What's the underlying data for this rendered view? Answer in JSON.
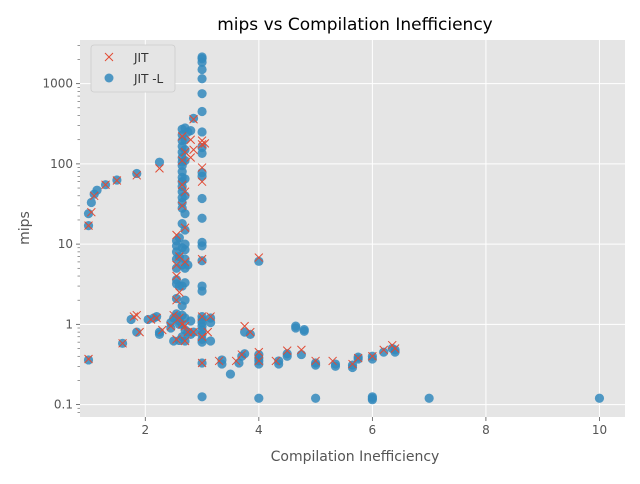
{
  "chart_data": {
    "type": "scatter",
    "title": "mips vs Compilation Inefficiency",
    "xlabel": "Compilation Inefficiency",
    "ylabel": "mips",
    "xlim": [
      0.85,
      10.45
    ],
    "ylim": [
      0.07,
      3500
    ],
    "yscale": "log",
    "xticks": [
      2,
      4,
      6,
      8,
      10
    ],
    "yticks": [
      0.1,
      1,
      10,
      100,
      1000
    ],
    "ytick_labels": [
      "0.1",
      "1",
      "10",
      "100",
      "1000"
    ],
    "grid": true,
    "legend_position": "top-left",
    "series": [
      {
        "name": "JIT",
        "marker": "x",
        "color": "#E24A33",
        "points": [
          [
            1.0,
            0.37
          ],
          [
            1.0,
            17
          ],
          [
            1.05,
            25
          ],
          [
            1.1,
            40
          ],
          [
            1.3,
            55
          ],
          [
            1.5,
            62
          ],
          [
            1.6,
            0.58
          ],
          [
            1.8,
            1.25
          ],
          [
            1.85,
            1.3
          ],
          [
            1.85,
            72
          ],
          [
            1.9,
            0.8
          ],
          [
            2.1,
            1.15
          ],
          [
            2.2,
            1.2
          ],
          [
            2.25,
            88
          ],
          [
            2.3,
            0.85
          ],
          [
            2.45,
            0.95
          ],
          [
            2.5,
            1.3
          ],
          [
            2.55,
            0.65
          ],
          [
            2.55,
            2.0
          ],
          [
            2.55,
            4.0
          ],
          [
            2.55,
            5.5
          ],
          [
            2.55,
            13
          ],
          [
            2.6,
            1.2
          ],
          [
            2.6,
            2.5
          ],
          [
            2.6,
            7.0
          ],
          [
            2.65,
            1.0
          ],
          [
            2.65,
            30
          ],
          [
            2.65,
            55
          ],
          [
            2.65,
            110
          ],
          [
            2.65,
            220
          ],
          [
            2.7,
            0.62
          ],
          [
            2.7,
            0.95
          ],
          [
            2.7,
            6.0
          ],
          [
            2.7,
            16
          ],
          [
            2.7,
            45
          ],
          [
            2.7,
            140
          ],
          [
            2.75,
            0.8
          ],
          [
            2.8,
            120
          ],
          [
            2.8,
            200
          ],
          [
            2.85,
            0.8
          ],
          [
            2.85,
            150
          ],
          [
            2.85,
            360
          ],
          [
            3.0,
            0.33
          ],
          [
            3.0,
            0.7
          ],
          [
            3.0,
            1.25
          ],
          [
            3.0,
            6.5
          ],
          [
            3.0,
            60
          ],
          [
            3.0,
            90
          ],
          [
            3.0,
            175
          ],
          [
            3.0,
            195
          ],
          [
            3.05,
            180
          ],
          [
            3.1,
            0.8
          ],
          [
            3.15,
            1.25
          ],
          [
            3.3,
            0.35
          ],
          [
            3.6,
            0.35
          ],
          [
            3.7,
            0.42
          ],
          [
            3.75,
            0.95
          ],
          [
            3.85,
            0.8
          ],
          [
            4.0,
            0.45
          ],
          [
            4.0,
            0.35
          ],
          [
            4.0,
            6.8
          ],
          [
            4.3,
            0.35
          ],
          [
            4.5,
            0.47
          ],
          [
            4.75,
            0.48
          ],
          [
            5.0,
            0.35
          ],
          [
            5.3,
            0.35
          ],
          [
            5.65,
            0.32
          ],
          [
            5.75,
            0.38
          ],
          [
            6.0,
            0.4
          ],
          [
            6.2,
            0.48
          ],
          [
            6.35,
            0.55
          ],
          [
            6.4,
            0.5
          ]
        ]
      },
      {
        "name": "JIT -L",
        "marker": "o",
        "color": "#348ABD",
        "points": [
          [
            1.0,
            0.36
          ],
          [
            1.0,
            17
          ],
          [
            1.0,
            24
          ],
          [
            1.05,
            33
          ],
          [
            1.1,
            42
          ],
          [
            1.15,
            47
          ],
          [
            1.3,
            55
          ],
          [
            1.5,
            63
          ],
          [
            1.6,
            0.58
          ],
          [
            1.75,
            1.15
          ],
          [
            1.85,
            76
          ],
          [
            1.85,
            0.8
          ],
          [
            2.05,
            1.15
          ],
          [
            2.15,
            1.2
          ],
          [
            2.2,
            1.25
          ],
          [
            2.25,
            105
          ],
          [
            2.25,
            0.75
          ],
          [
            2.25,
            0.8
          ],
          [
            2.45,
            0.9
          ],
          [
            2.45,
            1.05
          ],
          [
            2.5,
            0.62
          ],
          [
            2.5,
            1.2
          ],
          [
            2.55,
            1.25
          ],
          [
            2.55,
            1.35
          ],
          [
            2.55,
            2.1
          ],
          [
            2.55,
            3.2
          ],
          [
            2.55,
            3.6
          ],
          [
            2.55,
            5.0
          ],
          [
            2.55,
            6.5
          ],
          [
            2.55,
            8.0
          ],
          [
            2.55,
            9.5
          ],
          [
            2.55,
            11
          ],
          [
            2.6,
            0.63
          ],
          [
            2.6,
            1.0
          ],
          [
            2.6,
            1.1
          ],
          [
            2.6,
            3.0
          ],
          [
            2.6,
            7.0
          ],
          [
            2.6,
            12
          ],
          [
            2.65,
            0.7
          ],
          [
            2.65,
            1.0
          ],
          [
            2.65,
            1.3
          ],
          [
            2.65,
            1.7
          ],
          [
            2.65,
            3.0
          ],
          [
            2.65,
            5.5
          ],
          [
            2.65,
            9.0
          ],
          [
            2.65,
            18
          ],
          [
            2.65,
            28
          ],
          [
            2.65,
            33
          ],
          [
            2.65,
            38
          ],
          [
            2.65,
            45
          ],
          [
            2.65,
            52
          ],
          [
            2.65,
            60
          ],
          [
            2.65,
            68
          ],
          [
            2.65,
            80
          ],
          [
            2.65,
            95
          ],
          [
            2.65,
            105
          ],
          [
            2.65,
            120
          ],
          [
            2.65,
            140
          ],
          [
            2.65,
            165
          ],
          [
            2.65,
            195
          ],
          [
            2.65,
            230
          ],
          [
            2.65,
            270
          ],
          [
            2.7,
            0.62
          ],
          [
            2.7,
            0.85
          ],
          [
            2.7,
            1.2
          ],
          [
            2.7,
            2.0
          ],
          [
            2.7,
            3.3
          ],
          [
            2.7,
            5.0
          ],
          [
            2.7,
            6.5
          ],
          [
            2.7,
            8.5
          ],
          [
            2.7,
            10
          ],
          [
            2.7,
            15
          ],
          [
            2.7,
            24
          ],
          [
            2.7,
            40
          ],
          [
            2.7,
            65
          ],
          [
            2.7,
            110
          ],
          [
            2.7,
            150
          ],
          [
            2.7,
            200
          ],
          [
            2.7,
            280
          ],
          [
            2.75,
            0.8
          ],
          [
            2.75,
            5.5
          ],
          [
            2.75,
            250
          ],
          [
            2.8,
            0.75
          ],
          [
            2.8,
            1.1
          ],
          [
            2.8,
            260
          ],
          [
            2.85,
            0.8
          ],
          [
            2.85,
            370
          ],
          [
            3.0,
            0.125
          ],
          [
            3.0,
            0.33
          ],
          [
            3.0,
            0.6
          ],
          [
            3.0,
            0.65
          ],
          [
            3.0,
            0.75
          ],
          [
            3.0,
            0.85
          ],
          [
            3.0,
            0.95
          ],
          [
            3.0,
            1.05
          ],
          [
            3.0,
            1.15
          ],
          [
            3.0,
            1.25
          ],
          [
            3.0,
            2.6
          ],
          [
            3.0,
            3.0
          ],
          [
            3.0,
            6.2
          ],
          [
            3.0,
            9.5
          ],
          [
            3.0,
            10.5
          ],
          [
            3.0,
            21
          ],
          [
            3.0,
            37
          ],
          [
            3.0,
            70
          ],
          [
            3.0,
            78
          ],
          [
            3.0,
            135
          ],
          [
            3.0,
            160
          ],
          [
            3.0,
            250
          ],
          [
            3.0,
            450
          ],
          [
            3.0,
            750
          ],
          [
            3.0,
            1150
          ],
          [
            3.0,
            1500
          ],
          [
            3.0,
            1850
          ],
          [
            3.0,
            2050
          ],
          [
            3.0,
            2150
          ],
          [
            3.15,
            0.62
          ],
          [
            3.15,
            1.05
          ],
          [
            3.15,
            1.2
          ],
          [
            3.35,
            0.32
          ],
          [
            3.35,
            0.36
          ],
          [
            3.5,
            0.24
          ],
          [
            3.65,
            0.33
          ],
          [
            3.7,
            0.4
          ],
          [
            3.75,
            0.43
          ],
          [
            3.75,
            0.8
          ],
          [
            3.85,
            0.75
          ],
          [
            4.0,
            0.12
          ],
          [
            4.0,
            0.32
          ],
          [
            4.0,
            0.35
          ],
          [
            4.0,
            0.38
          ],
          [
            4.0,
            0.42
          ],
          [
            4.0,
            6.1
          ],
          [
            4.35,
            0.32
          ],
          [
            4.35,
            0.35
          ],
          [
            4.5,
            0.4
          ],
          [
            4.5,
            0.43
          ],
          [
            4.65,
            0.9
          ],
          [
            4.65,
            0.95
          ],
          [
            4.75,
            0.42
          ],
          [
            4.8,
            0.82
          ],
          [
            4.8,
            0.86
          ],
          [
            5.0,
            0.12
          ],
          [
            5.0,
            0.31
          ],
          [
            5.0,
            0.33
          ],
          [
            5.35,
            0.3
          ],
          [
            5.35,
            0.32
          ],
          [
            5.65,
            0.29
          ],
          [
            5.65,
            0.31
          ],
          [
            5.75,
            0.37
          ],
          [
            5.75,
            0.39
          ],
          [
            6.0,
            0.115
          ],
          [
            6.0,
            0.12
          ],
          [
            6.0,
            0.125
          ],
          [
            6.0,
            0.37
          ],
          [
            6.0,
            0.4
          ],
          [
            6.2,
            0.45
          ],
          [
            6.35,
            0.5
          ],
          [
            6.4,
            0.45
          ],
          [
            6.4,
            0.48
          ],
          [
            7.0,
            0.12
          ],
          [
            10.0,
            0.12
          ]
        ]
      }
    ]
  }
}
